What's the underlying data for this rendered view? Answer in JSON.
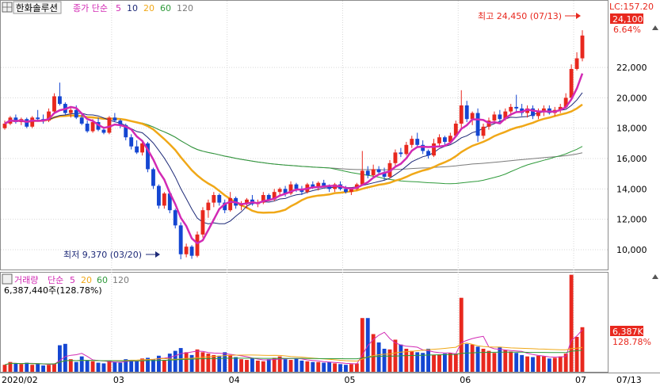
{
  "header": {
    "stock_name": "한화솔루션",
    "ma_label": "종가 단순",
    "ma_periods": [
      "5",
      "10",
      "20",
      "60",
      "120"
    ],
    "lc_label": "LC:157.20",
    "last_price_label": "24,100",
    "change_pct_label": "6.64%"
  },
  "annotations": {
    "high_label": "최고 24,450 (07/13)",
    "low_label": "최저 9,370 (03/20)"
  },
  "volume_header": {
    "title": "거래량",
    "ma_label": "단순",
    "ma_periods": [
      "5",
      "20",
      "60",
      "120"
    ],
    "current_label": "6,387,440주(128.78%)",
    "current_box_label": "6,387K",
    "current_pct_label": "128.78%"
  },
  "colors": {
    "up": "#e8281e",
    "down": "#1446d2",
    "ma5": "#d22ab4",
    "ma10": "#1e2a78",
    "ma20": "#f0a818",
    "ma60": "#2e9a3a",
    "ma120": "#7a7a7a",
    "grid": "#d7d7d7"
  },
  "chart_data": [
    {
      "type": "candlestick",
      "title": "한화솔루션",
      "ylim": [
        8800,
        25500
      ],
      "y_ticks": [
        "10,000",
        "12,000",
        "14,000",
        "16,000",
        "18,000",
        "20,000",
        "22,000"
      ],
      "x_ticks": [
        "2020/02",
        "03",
        "04",
        "05",
        "06",
        "07",
        "07/13"
      ],
      "moving_averages": [
        "5",
        "10",
        "20",
        "60",
        "120"
      ],
      "candles": [
        [
          18000,
          18500,
          17900,
          18300
        ],
        [
          18300,
          18800,
          18200,
          18700
        ],
        [
          18700,
          18900,
          18300,
          18400
        ],
        [
          18400,
          18700,
          18200,
          18600
        ],
        [
          18600,
          18700,
          18000,
          18100
        ],
        [
          18100,
          18800,
          18000,
          18700
        ],
        [
          18700,
          19200,
          18500,
          18600
        ],
        [
          18600,
          18900,
          18300,
          18500
        ],
        [
          18500,
          19300,
          18400,
          19100
        ],
        [
          19100,
          20300,
          19000,
          20100
        ],
        [
          20100,
          21000,
          19500,
          19600
        ],
        [
          19600,
          19700,
          18900,
          19000
        ],
        [
          19000,
          19400,
          18700,
          19200
        ],
        [
          19200,
          19500,
          18600,
          18700
        ],
        [
          18700,
          19000,
          18200,
          18300
        ],
        [
          18300,
          18500,
          17700,
          17800
        ],
        [
          17800,
          18600,
          17700,
          18400
        ],
        [
          18400,
          18700,
          17800,
          17900
        ],
        [
          17900,
          18100,
          17600,
          17700
        ],
        [
          17700,
          18800,
          17600,
          18700
        ],
        [
          18700,
          19000,
          18400,
          18500
        ],
        [
          18500,
          18600,
          18000,
          18200
        ],
        [
          18200,
          18300,
          17200,
          17400
        ],
        [
          17400,
          17600,
          16600,
          16800
        ],
        [
          16800,
          17200,
          16300,
          16400
        ],
        [
          16400,
          17200,
          16200,
          17000
        ],
        [
          17000,
          17100,
          15100,
          15300
        ],
        [
          15300,
          15400,
          14000,
          14200
        ],
        [
          14200,
          14300,
          12700,
          12900
        ],
        [
          12900,
          13800,
          12700,
          13700
        ],
        [
          13700,
          13800,
          12400,
          12600
        ],
        [
          12600,
          12700,
          11400,
          11600
        ],
        [
          11600,
          11800,
          9370,
          9700
        ],
        [
          9700,
          10400,
          9500,
          10200
        ],
        [
          10200,
          10300,
          9400,
          9600
        ],
        [
          9600,
          11200,
          9500,
          11000
        ],
        [
          11000,
          12800,
          10800,
          12600
        ],
        [
          12600,
          13300,
          12100,
          13100
        ],
        [
          13100,
          13800,
          12800,
          13600
        ],
        [
          13600,
          13700,
          12900,
          13100
        ],
        [
          13100,
          13300,
          12400,
          12600
        ],
        [
          12600,
          13800,
          12500,
          13400
        ],
        [
          13400,
          13500,
          12700,
          12900
        ],
        [
          12900,
          13200,
          12600,
          13000
        ],
        [
          13000,
          13400,
          12700,
          13300
        ],
        [
          13300,
          13600,
          12900,
          13000
        ],
        [
          13000,
          13300,
          12800,
          13100
        ],
        [
          13100,
          13800,
          13000,
          13600
        ],
        [
          13600,
          13700,
          13200,
          13300
        ],
        [
          13300,
          14000,
          13200,
          13800
        ],
        [
          13800,
          14100,
          13600,
          14000
        ],
        [
          14000,
          14200,
          13500,
          13700
        ],
        [
          13700,
          14500,
          13600,
          14300
        ],
        [
          14300,
          14400,
          13800,
          14000
        ],
        [
          14000,
          14200,
          13600,
          13800
        ],
        [
          13800,
          14400,
          13700,
          14300
        ],
        [
          14300,
          14500,
          14000,
          14100
        ],
        [
          14100,
          14500,
          13900,
          14400
        ],
        [
          14400,
          14600,
          14100,
          14200
        ],
        [
          14200,
          14300,
          13800,
          14000
        ],
        [
          14000,
          14400,
          13800,
          14300
        ],
        [
          14300,
          14500,
          13900,
          14000
        ],
        [
          14000,
          14200,
          13700,
          13800
        ],
        [
          13800,
          14100,
          13600,
          14000
        ],
        [
          14000,
          14400,
          13900,
          14300
        ],
        [
          14300,
          16500,
          14200,
          15200
        ],
        [
          15200,
          15500,
          14700,
          14900
        ],
        [
          14900,
          15600,
          14800,
          15300
        ],
        [
          15300,
          15500,
          14900,
          15100
        ],
        [
          15100,
          15400,
          14600,
          14800
        ],
        [
          14800,
          15900,
          14700,
          15700
        ],
        [
          15700,
          16600,
          15500,
          16400
        ],
        [
          16400,
          16700,
          16100,
          16300
        ],
        [
          16300,
          17100,
          16200,
          16900
        ],
        [
          16900,
          17500,
          16700,
          17300
        ],
        [
          17300,
          17700,
          16700,
          16900
        ],
        [
          16900,
          17200,
          16300,
          16500
        ],
        [
          16500,
          16600,
          16000,
          16200
        ],
        [
          16200,
          17300,
          16100,
          17000
        ],
        [
          17000,
          17600,
          16800,
          17400
        ],
        [
          17400,
          17500,
          16900,
          17100
        ],
        [
          17100,
          17700,
          17000,
          17500
        ],
        [
          17500,
          18500,
          17400,
          18300
        ],
        [
          18300,
          20500,
          18000,
          19500
        ],
        [
          19500,
          19800,
          18400,
          18600
        ],
        [
          18600,
          19100,
          18200,
          19000
        ],
        [
          19000,
          19300,
          17100,
          17500
        ],
        [
          17500,
          18300,
          17300,
          18100
        ],
        [
          18100,
          18700,
          17900,
          18500
        ],
        [
          18500,
          19100,
          18300,
          18900
        ],
        [
          18900,
          19200,
          18400,
          18600
        ],
        [
          18600,
          19300,
          18500,
          19100
        ],
        [
          19100,
          19600,
          18800,
          19400
        ],
        [
          19400,
          20200,
          19100,
          19300
        ],
        [
          19300,
          19600,
          18800,
          19000
        ],
        [
          19000,
          19500,
          18700,
          19300
        ],
        [
          19300,
          19500,
          18600,
          18800
        ],
        [
          18800,
          19300,
          18600,
          19100
        ],
        [
          19100,
          19500,
          18800,
          19300
        ],
        [
          19300,
          19500,
          18900,
          19000
        ],
        [
          19000,
          19400,
          18800,
          19200
        ],
        [
          19200,
          19600,
          19000,
          19400
        ],
        [
          19400,
          20300,
          19300,
          20000
        ],
        [
          20000,
          22200,
          19900,
          21900
        ],
        [
          21900,
          23000,
          21800,
          22600
        ],
        [
          22600,
          24450,
          22400,
          24100
        ]
      ],
      "volumes": [
        1000,
        1400,
        1200,
        1100,
        1300,
        1000,
        1200,
        900,
        1000,
        1200,
        3800,
        4000,
        1800,
        1400,
        2200,
        1600,
        1500,
        1300,
        1200,
        1600,
        1400,
        1300,
        1800,
        1600,
        1500,
        1900,
        2000,
        1800,
        2300,
        1700,
        2600,
        3000,
        3400,
        2800,
        2400,
        3200,
        2800,
        2600,
        2400,
        2300,
        2800,
        2400,
        2100,
        1800,
        1700,
        1900,
        1600,
        1500,
        1800,
        2000,
        2200,
        1800,
        1700,
        1900,
        1600,
        1500,
        1400,
        1400,
        1300,
        1400,
        1200,
        1100,
        1000,
        1100,
        1200,
        7700,
        7700,
        5400,
        4200,
        3300,
        3200,
        4600,
        3900,
        3300,
        3000,
        2800,
        2700,
        3300,
        2400,
        2500,
        2600,
        2700,
        2600,
        10600,
        4000,
        3900,
        3600,
        3300,
        3000,
        2700,
        3500,
        3100,
        2900,
        2700,
        2400,
        2200,
        2100,
        2300,
        2200,
        1900,
        2000,
        2200,
        2600,
        13900,
        5000,
        6387
      ],
      "volume_ylim": [
        0,
        14200
      ],
      "volume_y_ticks": [
        "2,500K",
        "5,000K",
        "7,500K",
        "10,000K",
        "12,500K"
      ]
    }
  ]
}
